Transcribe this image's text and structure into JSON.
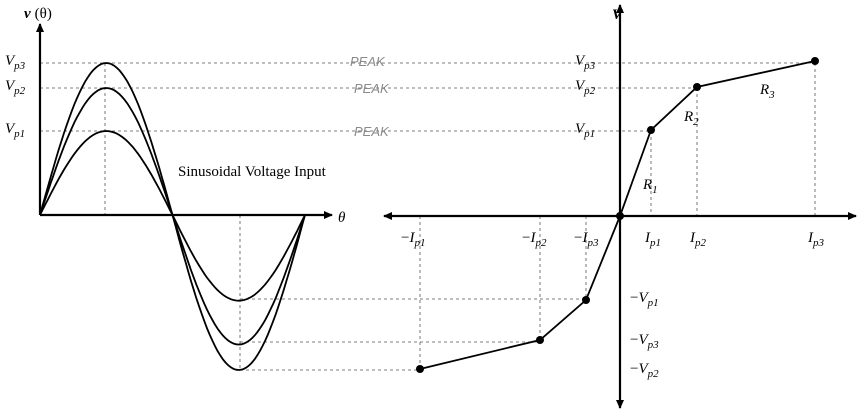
{
  "left_panel": {
    "y_axis_label": {
      "base": "v",
      "arg": "(θ)"
    },
    "x_axis_label": "θ",
    "tick_labels": [
      {
        "base": "V",
        "sub": "p3"
      },
      {
        "base": "V",
        "sub": "p2"
      },
      {
        "base": "V",
        "sub": "p1"
      }
    ],
    "peak_labels": [
      "PEAK",
      "PEAK",
      "PEAK"
    ],
    "caption": "Sinusoidal Voltage Input"
  },
  "right_panel": {
    "y_axis_label": "V",
    "positive_v_labels": [
      {
        "base": "V",
        "sub": "p3"
      },
      {
        "base": "V",
        "sub": "p2"
      },
      {
        "base": "V",
        "sub": "p1"
      }
    ],
    "positive_i_labels": [
      {
        "base": "I",
        "sub": "p1"
      },
      {
        "base": "I",
        "sub": "p2"
      },
      {
        "base": "I",
        "sub": "p3"
      }
    ],
    "negative_i_labels": [
      {
        "sign": "−",
        "base": "I",
        "sub": "p1"
      },
      {
        "sign": "−",
        "base": "I",
        "sub": "p2"
      },
      {
        "sign": "−",
        "base": "I",
        "sub": "p3"
      }
    ],
    "negative_v_labels": [
      {
        "sign": "−",
        "base": "V",
        "sub": "p1"
      },
      {
        "sign": "−",
        "base": "V",
        "sub": "p3"
      },
      {
        "sign": "−",
        "base": "V",
        "sub": "p2"
      }
    ],
    "segment_labels": [
      {
        "base": "R",
        "sub": "1"
      },
      {
        "base": "R",
        "sub": "2"
      },
      {
        "base": "R",
        "sub": "3"
      }
    ]
  }
}
